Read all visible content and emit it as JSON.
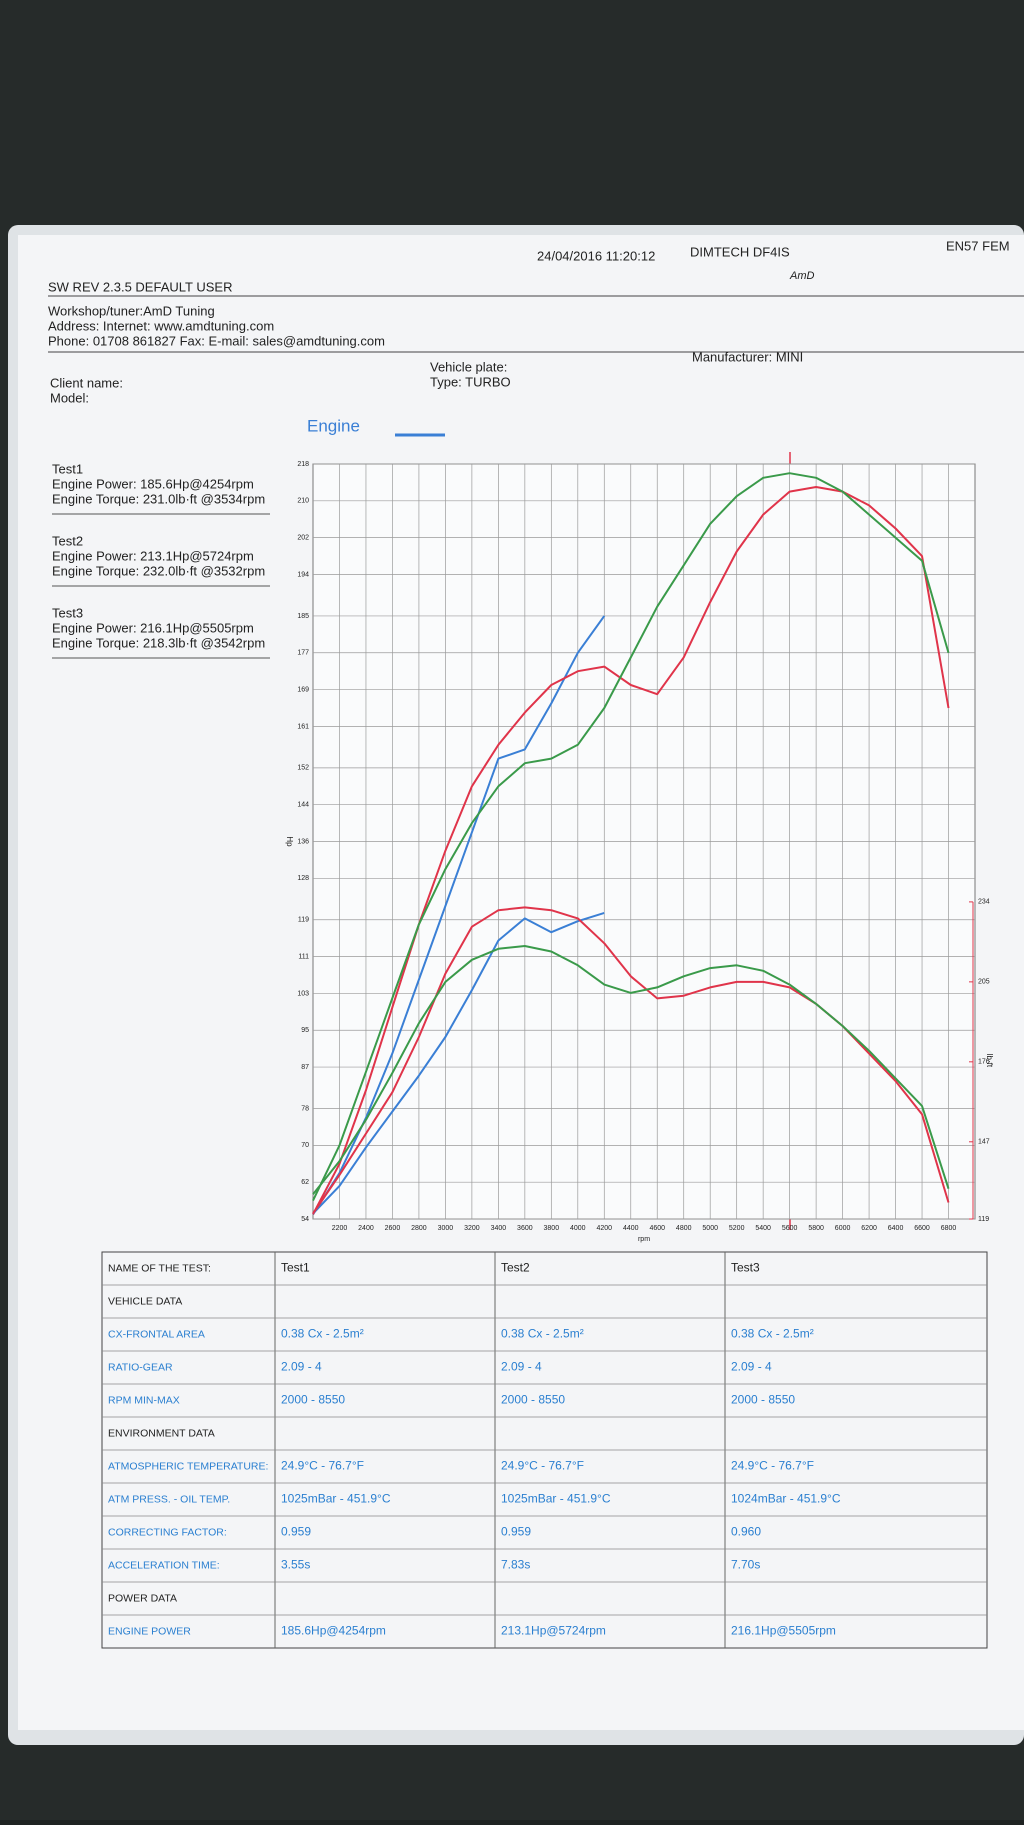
{
  "header": {
    "software": "SW REV 2.3.5  DEFAULT USER",
    "date": "24/04/2016 11:20:12",
    "device": "DIMTECH DF4IS",
    "code": "EN57 FEM",
    "logo": "AmD"
  },
  "workshop": {
    "tuner": "Workshop/tuner:AmD Tuning",
    "internet": "Address:  Internet: www.amdtuning.com",
    "phone": "Phone: 01708 861827 Fax:  E-mail: sales@amdtuning.com"
  },
  "vehicle": {
    "client": "Client name:",
    "model": "Model:",
    "plate": "Vehicle plate:",
    "type": "Type: TURBO",
    "manufacturer": "Manufacturer: MINI"
  },
  "summaries": [
    {
      "name": "Test1",
      "power": "Engine Power: 185.6Hp@4254rpm",
      "torque": "Engine Torque: 231.0lb·ft @3534rpm"
    },
    {
      "name": "Test2",
      "power": "Engine Power: 213.1Hp@5724rpm",
      "torque": "Engine Torque: 232.0lb·ft @3532rpm"
    },
    {
      "name": "Test3",
      "power": "Engine Power: 216.1Hp@5505rpm",
      "torque": "Engine Torque: 218.3lb·ft @3542rpm"
    }
  ],
  "chart_data": {
    "type": "line",
    "title": "Engine",
    "title_color": "#3a7fd5",
    "xlabel": "rpm",
    "ylabel": "Hp",
    "y2label": "lb·ft",
    "x": [
      2000,
      2200,
      2400,
      2600,
      2800,
      3000,
      3200,
      3400,
      3600,
      3800,
      4000,
      4200,
      4400,
      4600,
      4800,
      5000,
      5200,
      5400,
      5600,
      5800,
      6000,
      6200,
      6400,
      6600,
      6800
    ],
    "xlim": [
      2000,
      7000
    ],
    "xticks": [
      2200,
      2400,
      2600,
      2800,
      3000,
      3200,
      3400,
      3600,
      3800,
      4000,
      4200,
      4400,
      4600,
      4800,
      5000,
      5200,
      5400,
      5600,
      5800,
      6000,
      6200,
      6400,
      6600,
      6800
    ],
    "ylim": [
      54,
      218
    ],
    "yticks": [
      54,
      62,
      70,
      78,
      87,
      95,
      103,
      111,
      119,
      128,
      136,
      144,
      152,
      161,
      169,
      177,
      185,
      194,
      202,
      210,
      218
    ],
    "y2lim": [
      119,
      234
    ],
    "y2ticks": [
      119,
      147,
      176,
      205,
      234
    ],
    "grid": true,
    "series": [
      {
        "color": "#3a7fd5",
        "values": [
          55,
          64,
          76,
          90,
          106,
          122,
          138,
          154,
          156,
          166,
          177,
          185,
          null,
          null,
          null,
          null,
          null,
          null,
          null,
          null,
          null,
          null,
          null,
          null,
          null
        ]
      },
      {
        "color": "#e0344a",
        "values": [
          55,
          66,
          82,
          100,
          118,
          134,
          148,
          157,
          164,
          170,
          173,
          174,
          170,
          168,
          176,
          188,
          199,
          207,
          212,
          213,
          212,
          209,
          204,
          198,
          165
        ]
      },
      {
        "color": "#3a9a4a",
        "values": [
          58,
          70,
          86,
          102,
          118,
          130,
          140,
          148,
          153,
          154,
          157,
          165,
          176,
          187,
          196,
          205,
          211,
          215,
          216,
          215,
          212,
          207,
          202,
          197,
          177
        ]
      },
      {
        "color": "#3a7fd5",
        "axis": "y2",
        "values": [
          121,
          131,
          145,
          158,
          171,
          185,
          202,
          220,
          228,
          223,
          227,
          230,
          null,
          null,
          null,
          null,
          null,
          null,
          null,
          null,
          null,
          null,
          null,
          null,
          null
        ]
      },
      {
        "color": "#e0344a",
        "axis": "y2",
        "values": [
          121,
          135,
          150,
          165,
          185,
          208,
          225,
          231,
          232,
          231,
          228,
          219,
          207,
          199,
          200,
          203,
          205,
          205,
          203,
          197,
          189,
          179,
          169,
          157,
          125
        ]
      },
      {
        "color": "#3a9a4a",
        "axis": "y2",
        "values": [
          128,
          140,
          155,
          172,
          190,
          205,
          213,
          217,
          218,
          216,
          211,
          204,
          201,
          203,
          207,
          210,
          211,
          209,
          204,
          197,
          189,
          180,
          170,
          160,
          130
        ]
      }
    ]
  },
  "table": {
    "rows": [
      [
        "NAME OF THE TEST:",
        "Test1",
        "Test2",
        "Test3"
      ],
      [
        "VEHICLE DATA"
      ],
      [
        "CX-FRONTAL AREA",
        "0.38 Cx - 2.5m²",
        "0.38 Cx - 2.5m²",
        "0.38 Cx - 2.5m²"
      ],
      [
        "RATIO-GEAR",
        "2.09 - 4",
        "2.09 - 4",
        "2.09 - 4"
      ],
      [
        "RPM MIN-MAX",
        "2000 - 8550",
        "2000 - 8550",
        "2000 - 8550"
      ],
      [
        "ENVIRONMENT DATA"
      ],
      [
        "ATMOSPHERIC TEMPERATURE:",
        "24.9°C - 76.7°F",
        "24.9°C - 76.7°F",
        "24.9°C - 76.7°F"
      ],
      [
        "ATM PRESS. - OIL TEMP.",
        "1025mBar - 451.9°C",
        "1025mBar - 451.9°C",
        "1024mBar - 451.9°C"
      ],
      [
        "CORRECTING FACTOR:",
        "0.959",
        "0.959",
        "0.960"
      ],
      [
        "ACCELERATION TIME:",
        "3.55s",
        "7.83s",
        "7.70s"
      ],
      [
        "POWER DATA"
      ],
      [
        "ENGINE POWER",
        "185.6Hp@4254rpm",
        "213.1Hp@5724rpm",
        "216.1Hp@5505rpm"
      ]
    ]
  }
}
